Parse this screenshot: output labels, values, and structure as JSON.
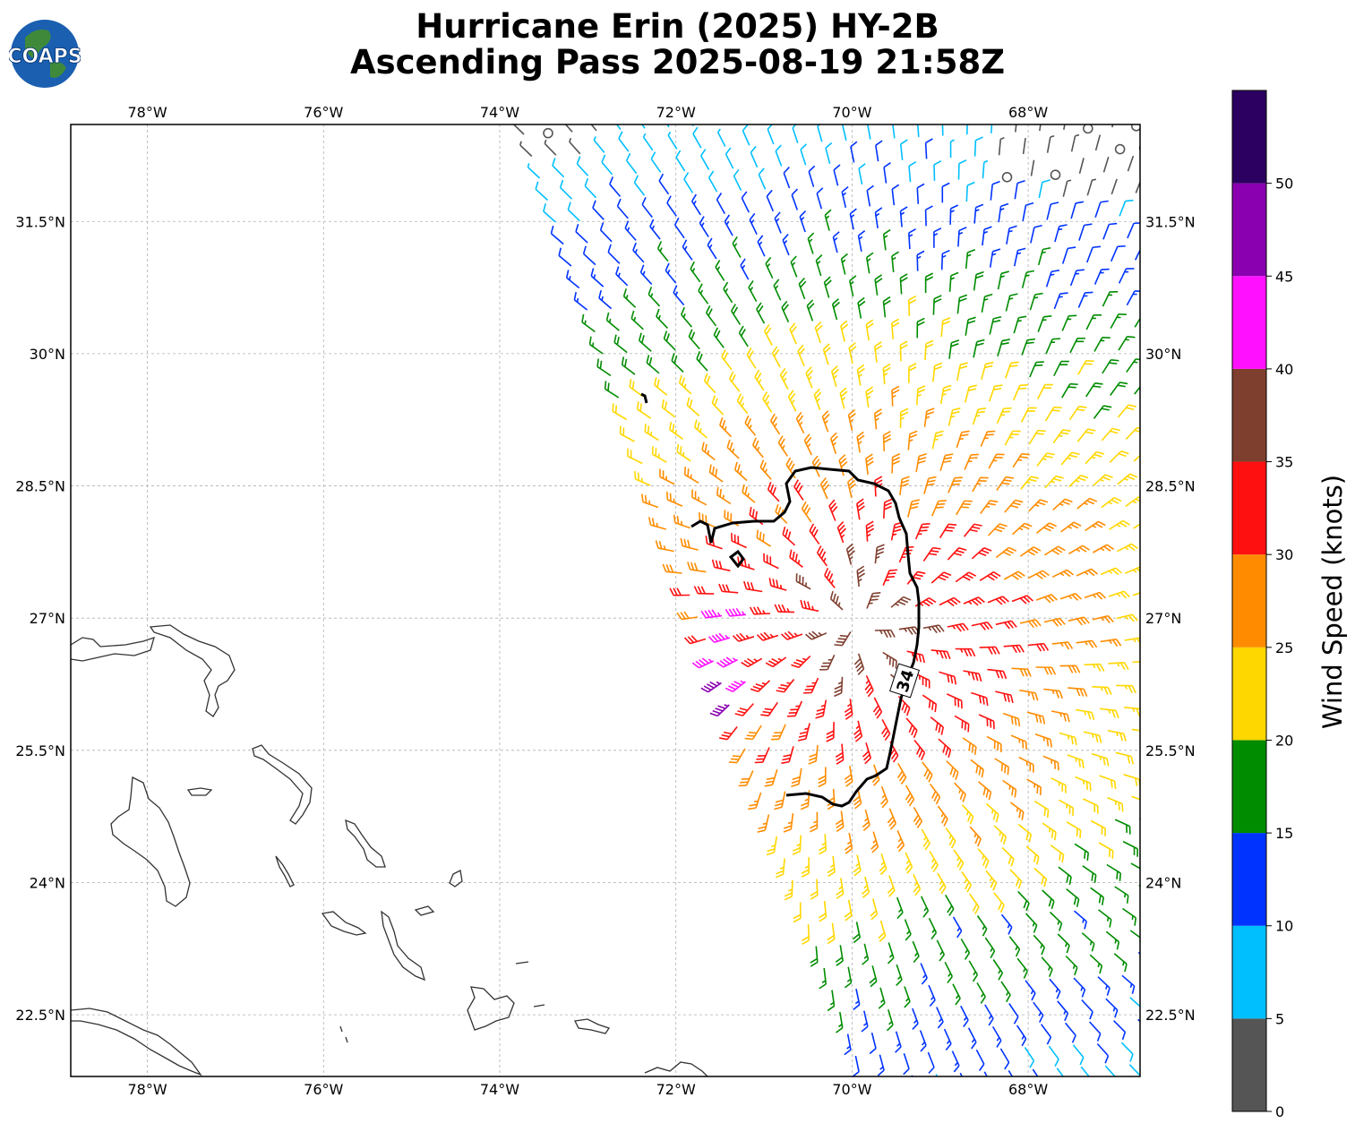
{
  "title_line1": "Hurricane Erin (2025) HY-2B",
  "title_line2": "Ascending Pass 2025-08-19 21:58Z",
  "logo_text": "COAPS",
  "map": {
    "lon_range": [
      -78.87,
      -66.73
    ],
    "lat_range": [
      21.8,
      32.6
    ],
    "lon_ticks": [
      "78°W",
      "76°W",
      "74°W",
      "72°W",
      "70°W",
      "68°W"
    ],
    "lon_tick_values": [
      -78,
      -76,
      -74,
      -72,
      -70,
      -68
    ],
    "lat_ticks": [
      "31.5°N",
      "30°N",
      "28.5°N",
      "27°N",
      "25.5°N",
      "24°N",
      "22.5°N"
    ],
    "lat_tick_values": [
      31.5,
      30,
      28.5,
      27,
      25.5,
      24,
      22.5
    ],
    "grid": true
  },
  "contour_label": "34",
  "colorbar": {
    "label": "Wind Speed (knots)",
    "ticks": [
      "0",
      "5",
      "10",
      "15",
      "20",
      "25",
      "30",
      "35",
      "40",
      "45",
      "50"
    ],
    "bins": [
      {
        "min": 0,
        "max": 5,
        "color": "#555555"
      },
      {
        "min": 5,
        "max": 10,
        "color": "#00bfff"
      },
      {
        "min": 10,
        "max": 15,
        "color": "#0033ff"
      },
      {
        "min": 15,
        "max": 20,
        "color": "#008c00"
      },
      {
        "min": 20,
        "max": 25,
        "color": "#ffd700"
      },
      {
        "min": 25,
        "max": 30,
        "color": "#ff8c00"
      },
      {
        "min": 30,
        "max": 35,
        "color": "#ff1010"
      },
      {
        "min": 35,
        "max": 40,
        "color": "#7f3f2f"
      },
      {
        "min": 40,
        "max": 45,
        "color": "#ff10ff"
      },
      {
        "min": 45,
        "max": 50,
        "color": "#8a00b0"
      },
      {
        "min": 50,
        "max": 55,
        "color": "#2b0060"
      }
    ]
  },
  "colors": {
    "coastline": "#333333",
    "contour": "#000000",
    "grid": "#b0b0b0"
  }
}
